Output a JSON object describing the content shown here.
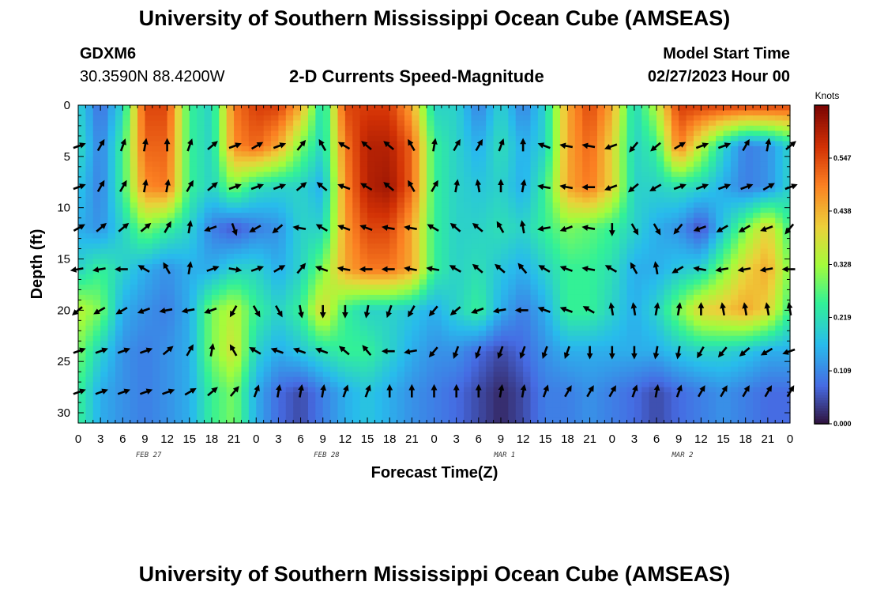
{
  "page": {
    "title_top": "University of Southern Mississippi Ocean Cube (AMSEAS)",
    "title_bottom": "University of Southern Mississippi Ocean Cube (AMSEAS)",
    "station_id": "GDXM6",
    "coordinates": "30.3590N  88.4200W",
    "model_start_label": "Model Start Time",
    "model_start_value": "02/27/2023 Hour 00"
  },
  "chart_data": {
    "type": "heatmap",
    "title": "2-D Currents Speed-Magnitude",
    "xlabel": "Forecast Time(Z)",
    "ylabel": "Depth (ft)",
    "x_tick_labels": [
      "0",
      "3",
      "6",
      "9",
      "12",
      "15",
      "18",
      "21",
      "0",
      "3",
      "6",
      "9",
      "12",
      "15",
      "18",
      "21",
      "0",
      "3",
      "6",
      "9",
      "12",
      "15",
      "18",
      "21",
      "0",
      "3",
      "6",
      "9",
      "12",
      "15",
      "18",
      "21",
      "0"
    ],
    "x_range_hours": [
      0,
      96
    ],
    "date_labels": [
      {
        "hour": 9.5,
        "text": "FEB 27"
      },
      {
        "hour": 33.5,
        "text": "FEB 28"
      },
      {
        "hour": 57.5,
        "text": "MAR 1"
      },
      {
        "hour": 81.5,
        "text": "MAR 2"
      }
    ],
    "y_ticks": [
      0,
      5,
      10,
      15,
      20,
      25,
      30
    ],
    "y_tick_labels": [
      "0",
      "5",
      "10",
      "15",
      "20",
      "25",
      "30"
    ],
    "y_range_ft": [
      0,
      31
    ],
    "colorbar": {
      "unit": "Knots",
      "min": 0.0,
      "max": 0.656,
      "tick_values": [
        0.0,
        0.109,
        0.219,
        0.328,
        0.438,
        0.547
      ],
      "tick_labels": [
        "0.000",
        "0.109",
        "0.219",
        "0.328",
        "0.438",
        "0.547"
      ]
    },
    "vector_depths_ft": [
      0,
      4,
      8,
      12,
      16,
      20,
      24,
      28
    ],
    "speed_grid": {
      "note": "current speed in knots; rows = vector_depths_ft, columns = hour 0..96 step 3",
      "rows": [
        [
          0.2,
          0.08,
          0.2,
          0.55,
          0.55,
          0.25,
          0.2,
          0.5,
          0.56,
          0.56,
          0.45,
          0.2,
          0.55,
          0.56,
          0.56,
          0.45,
          0.2,
          0.2,
          0.1,
          0.2,
          0.1,
          0.2,
          0.45,
          0.55,
          0.45,
          0.2,
          0.35,
          0.56,
          0.56,
          0.56,
          0.56,
          0.56,
          0.55
        ],
        [
          0.22,
          0.1,
          0.25,
          0.52,
          0.52,
          0.25,
          0.2,
          0.48,
          0.52,
          0.45,
          0.3,
          0.2,
          0.5,
          0.6,
          0.6,
          0.52,
          0.25,
          0.2,
          0.15,
          0.22,
          0.15,
          0.2,
          0.45,
          0.52,
          0.4,
          0.2,
          0.25,
          0.5,
          0.35,
          0.2,
          0.1,
          0.12,
          0.2
        ],
        [
          0.18,
          0.1,
          0.25,
          0.48,
          0.5,
          0.25,
          0.2,
          0.3,
          0.22,
          0.2,
          0.2,
          0.15,
          0.48,
          0.6,
          0.62,
          0.52,
          0.25,
          0.2,
          0.18,
          0.2,
          0.15,
          0.25,
          0.45,
          0.5,
          0.4,
          0.2,
          0.2,
          0.22,
          0.2,
          0.15,
          0.1,
          0.12,
          0.2
        ],
        [
          0.15,
          0.12,
          0.2,
          0.3,
          0.25,
          0.2,
          0.1,
          0.06,
          0.1,
          0.12,
          0.2,
          0.2,
          0.46,
          0.55,
          0.55,
          0.45,
          0.25,
          0.2,
          0.2,
          0.22,
          0.2,
          0.25,
          0.3,
          0.28,
          0.25,
          0.2,
          0.15,
          0.12,
          0.05,
          0.18,
          0.3,
          0.4,
          0.25
        ],
        [
          0.2,
          0.25,
          0.2,
          0.15,
          0.12,
          0.15,
          0.15,
          0.2,
          0.2,
          0.15,
          0.2,
          0.3,
          0.45,
          0.5,
          0.5,
          0.45,
          0.25,
          0.2,
          0.22,
          0.18,
          0.15,
          0.2,
          0.25,
          0.25,
          0.22,
          0.15,
          0.15,
          0.18,
          0.2,
          0.3,
          0.4,
          0.45,
          0.3
        ],
        [
          0.35,
          0.3,
          0.15,
          0.12,
          0.1,
          0.15,
          0.3,
          0.35,
          0.25,
          0.2,
          0.25,
          0.4,
          0.25,
          0.2,
          0.2,
          0.18,
          0.15,
          0.2,
          0.25,
          0.15,
          0.1,
          0.15,
          0.25,
          0.25,
          0.2,
          0.15,
          0.2,
          0.3,
          0.4,
          0.42,
          0.45,
          0.4,
          0.25
        ],
        [
          0.3,
          0.2,
          0.12,
          0.1,
          0.12,
          0.15,
          0.3,
          0.38,
          0.2,
          0.15,
          0.18,
          0.22,
          0.25,
          0.25,
          0.2,
          0.15,
          0.12,
          0.12,
          0.08,
          0.05,
          0.08,
          0.12,
          0.15,
          0.15,
          0.15,
          0.15,
          0.15,
          0.18,
          0.2,
          0.2,
          0.18,
          0.15,
          0.15
        ],
        [
          0.25,
          0.15,
          0.12,
          0.1,
          0.12,
          0.15,
          0.25,
          0.3,
          0.15,
          0.08,
          0.05,
          0.1,
          0.15,
          0.18,
          0.15,
          0.12,
          0.1,
          0.08,
          0.05,
          0.02,
          0.05,
          0.1,
          0.1,
          0.12,
          0.1,
          0.08,
          0.05,
          0.08,
          0.1,
          0.12,
          0.1,
          0.08,
          0.08
        ]
      ]
    },
    "direction_grid": {
      "note": "arrow direction in degrees (math convention, 0 = east, 90 = north); rows = vector_depths_ft 4..28, columns = hour 0..96 step 3",
      "rows": [
        [
          20,
          60,
          70,
          80,
          90,
          70,
          40,
          20,
          30,
          20,
          50,
          120,
          150,
          140,
          140,
          120,
          80,
          60,
          60,
          70,
          90,
          160,
          170,
          170,
          200,
          230,
          220,
          30,
          20,
          20,
          60,
          80,
          40
        ],
        [
          20,
          60,
          60,
          80,
          80,
          60,
          40,
          20,
          20,
          20,
          40,
          140,
          160,
          150,
          140,
          120,
          60,
          80,
          100,
          90,
          80,
          170,
          170,
          180,
          200,
          220,
          210,
          20,
          20,
          20,
          20,
          30,
          20
        ],
        [
          30,
          40,
          40,
          40,
          60,
          80,
          200,
          290,
          210,
          220,
          170,
          150,
          160,
          160,
          170,
          170,
          150,
          140,
          140,
          120,
          100,
          190,
          200,
          170,
          270,
          300,
          300,
          230,
          200,
          210,
          210,
          200,
          230
        ],
        [
          190,
          190,
          180,
          150,
          120,
          80,
          20,
          350,
          20,
          30,
          50,
          160,
          170,
          180,
          180,
          170,
          170,
          150,
          140,
          140,
          130,
          150,
          160,
          170,
          150,
          120,
          100,
          210,
          170,
          190,
          190,
          190,
          180
        ],
        [
          220,
          210,
          210,
          200,
          190,
          190,
          200,
          240,
          300,
          300,
          280,
          270,
          270,
          260,
          250,
          240,
          230,
          220,
          200,
          190,
          180,
          160,
          160,
          150,
          100,
          100,
          80,
          80,
          90,
          100,
          100,
          100,
          100
        ],
        [
          20,
          20,
          20,
          20,
          40,
          60,
          80,
          120,
          150,
          160,
          160,
          160,
          140,
          130,
          180,
          190,
          230,
          250,
          250,
          250,
          250,
          250,
          250,
          270,
          270,
          270,
          260,
          260,
          240,
          230,
          220,
          210,
          200
        ],
        [
          20,
          20,
          20,
          20,
          20,
          30,
          40,
          50,
          70,
          80,
          80,
          80,
          70,
          70,
          90,
          90,
          90,
          90,
          90,
          80,
          80,
          70,
          60,
          60,
          60,
          70,
          80,
          70,
          60,
          60,
          60,
          60,
          60
        ]
      ]
    }
  }
}
